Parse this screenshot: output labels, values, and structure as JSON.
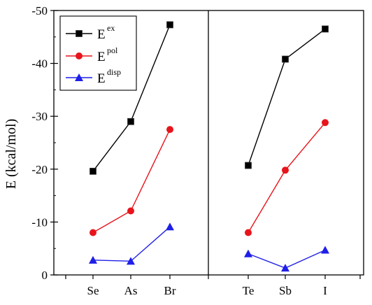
{
  "chart_data": {
    "type": "line",
    "ylabel": "E (kcal/mol)",
    "ylim": [
      0,
      -50
    ],
    "yticks": [
      0,
      -10,
      -20,
      -30,
      -40,
      -50
    ],
    "ytick_labels": [
      "0",
      "-10",
      "-20",
      "-30",
      "-40",
      "-50"
    ],
    "reversed_y": true,
    "panels": [
      {
        "categories": [
          "Se",
          "As",
          "Br"
        ]
      },
      {
        "categories": [
          "Te",
          "Sb",
          "I"
        ]
      }
    ],
    "series": [
      {
        "name_base": "E",
        "name_sup": "ex",
        "color": "#000000",
        "marker": "square",
        "values": [
          [
            -19.6,
            -29.0,
            -47.3
          ],
          [
            -20.7,
            -40.8,
            -46.5
          ]
        ]
      },
      {
        "name_base": "E",
        "name_sup": "pol",
        "color": "#e8141b",
        "marker": "circle",
        "values": [
          [
            -8.0,
            -12.1,
            -27.5
          ],
          [
            -8.0,
            -19.8,
            -28.8
          ]
        ]
      },
      {
        "name_base": "E",
        "name_sup": "disp",
        "color": "#1f1fe8",
        "marker": "triangle",
        "values": [
          [
            -2.8,
            -2.6,
            -9.1
          ],
          [
            -4.0,
            -1.3,
            -4.7
          ]
        ]
      }
    ],
    "legend_position": "top-left"
  }
}
